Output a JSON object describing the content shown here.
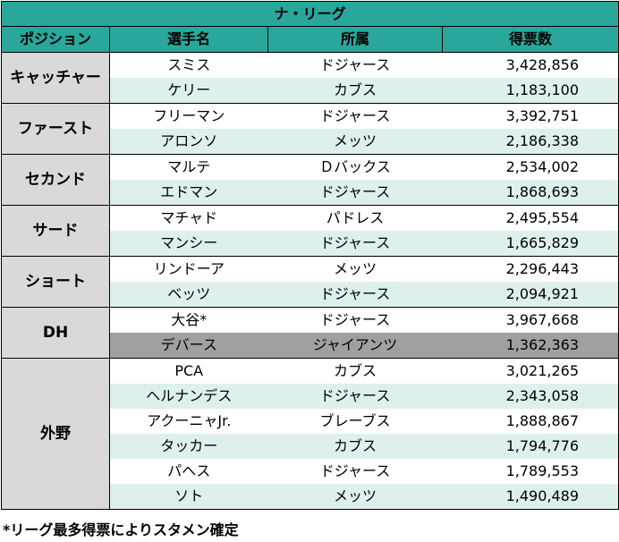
{
  "title": "ナ・リーグ",
  "headers": {
    "position": "ポジション",
    "player": "選手名",
    "team": "所属",
    "votes": "得票数"
  },
  "groups": [
    {
      "position": "キャッチャー",
      "rows": [
        {
          "player": "スミス",
          "team": "ドジャース",
          "votes": "3,428,856"
        },
        {
          "player": "ケリー",
          "team": "カブス",
          "votes": "1,183,100"
        }
      ]
    },
    {
      "position": "ファースト",
      "rows": [
        {
          "player": "フリーマン",
          "team": "ドジャース",
          "votes": "3,392,751"
        },
        {
          "player": "アロンソ",
          "team": "メッツ",
          "votes": "2,186,338"
        }
      ]
    },
    {
      "position": "セカンド",
      "rows": [
        {
          "player": "マルテ",
          "team": "Ｄバックス",
          "votes": "2,534,002"
        },
        {
          "player": "エドマン",
          "team": "ドジャース",
          "votes": "1,868,693"
        }
      ]
    },
    {
      "position": "サード",
      "rows": [
        {
          "player": "マチャド",
          "team": "パドレス",
          "votes": "2,495,554"
        },
        {
          "player": "マンシー",
          "team": "ドジャース",
          "votes": "1,665,829"
        }
      ]
    },
    {
      "position": "ショート",
      "rows": [
        {
          "player": "リンドーア",
          "team": "メッツ",
          "votes": "2,296,443"
        },
        {
          "player": "ベッツ",
          "team": "ドジャース",
          "votes": "2,094,921"
        }
      ]
    },
    {
      "position": "DH",
      "rows": [
        {
          "player": "大谷*",
          "team": "ドジャース",
          "votes": "3,967,668"
        },
        {
          "player": "デバース",
          "team": "ジャイアンツ",
          "votes": "1,362,363"
        }
      ]
    },
    {
      "position": "外野",
      "rows": [
        {
          "player": "PCA",
          "team": "カブス",
          "votes": "3,021,265"
        },
        {
          "player": "ヘルナンデス",
          "team": "ドジャース",
          "votes": "2,343,058"
        },
        {
          "player": "アクーニャJr.",
          "team": "ブレーブス",
          "votes": "1,888,867"
        },
        {
          "player": "タッカー",
          "team": "カブス",
          "votes": "1,794,776"
        },
        {
          "player": "パヘス",
          "team": "ドジャース",
          "votes": "1,789,553"
        },
        {
          "player": "ソト",
          "team": "メッツ",
          "votes": "1,490,489"
        }
      ]
    }
  ],
  "footnote": "*リーグ最多得票によりスタメン確定",
  "colors": {
    "header": "#2aa79b",
    "position_cell": "#d9d9d9",
    "alt_row": "#ddf0ee",
    "highlight_row": "#a0a0a0"
  }
}
